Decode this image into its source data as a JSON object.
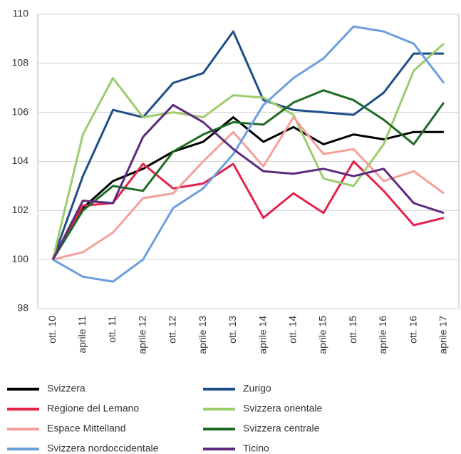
{
  "chart_data": {
    "type": "line",
    "categories": [
      "ott. 10",
      "aprile 11",
      "ott. 11",
      "aprile 12",
      "ott. 12",
      "aprile 13",
      "ott. 13",
      "aprile 14",
      "ott. 14",
      "aprile 15",
      "ott. 15",
      "aprile 16",
      "ott. 16",
      "aprile 17"
    ],
    "series": [
      {
        "name": "Svizzera",
        "color": "#000000",
        "values": [
          100,
          102.1,
          103.2,
          103.7,
          104.4,
          104.8,
          105.8,
          104.8,
          105.4,
          104.7,
          105.1,
          104.9,
          105.2,
          105.2
        ]
      },
      {
        "name": "Zurigo",
        "color": "#1f4e87",
        "values": [
          100,
          103.4,
          106.1,
          105.8,
          107.2,
          107.6,
          109.3,
          106.5,
          106.1,
          106.0,
          105.9,
          106.8,
          108.4,
          108.4
        ]
      },
      {
        "name": "Regione del Lemano",
        "color": "#e3234a",
        "values": [
          100,
          102.2,
          102.3,
          103.9,
          102.9,
          103.1,
          103.9,
          101.7,
          102.7,
          101.9,
          104.0,
          102.8,
          101.4,
          101.7
        ]
      },
      {
        "name": "Svizzera orientale",
        "color": "#9ccc6c",
        "values": [
          100,
          105.1,
          107.4,
          105.8,
          106.0,
          105.8,
          106.7,
          106.6,
          105.9,
          103.3,
          103.0,
          104.7,
          107.7,
          108.8
        ]
      },
      {
        "name": "Espace Mittelland",
        "color": "#f4a09a",
        "values": [
          100,
          100.3,
          101.1,
          102.5,
          102.7,
          104.0,
          105.2,
          103.8,
          105.8,
          104.3,
          104.5,
          103.2,
          103.6,
          102.7
        ]
      },
      {
        "name": "Svizzera centrale",
        "color": "#1e6b24",
        "values": [
          100,
          102.0,
          103.0,
          102.8,
          104.4,
          105.1,
          105.6,
          105.5,
          106.4,
          106.9,
          106.5,
          105.7,
          104.7,
          106.4
        ]
      },
      {
        "name": "Svizzera nordoccidentale",
        "color": "#6c9ede",
        "values": [
          100,
          99.3,
          99.1,
          100.0,
          102.1,
          102.9,
          104.3,
          106.3,
          107.4,
          108.2,
          109.5,
          109.3,
          108.8,
          107.2
        ]
      },
      {
        "name": "Ticino",
        "color": "#5e2a7e",
        "values": [
          100,
          102.4,
          102.3,
          105.0,
          106.3,
          105.6,
          104.5,
          103.6,
          103.5,
          103.7,
          103.4,
          103.7,
          102.3,
          101.9
        ]
      }
    ],
    "ylim": [
      98,
      110
    ],
    "yticks": [
      98,
      100,
      102,
      104,
      106,
      108,
      110
    ],
    "grid": true
  }
}
